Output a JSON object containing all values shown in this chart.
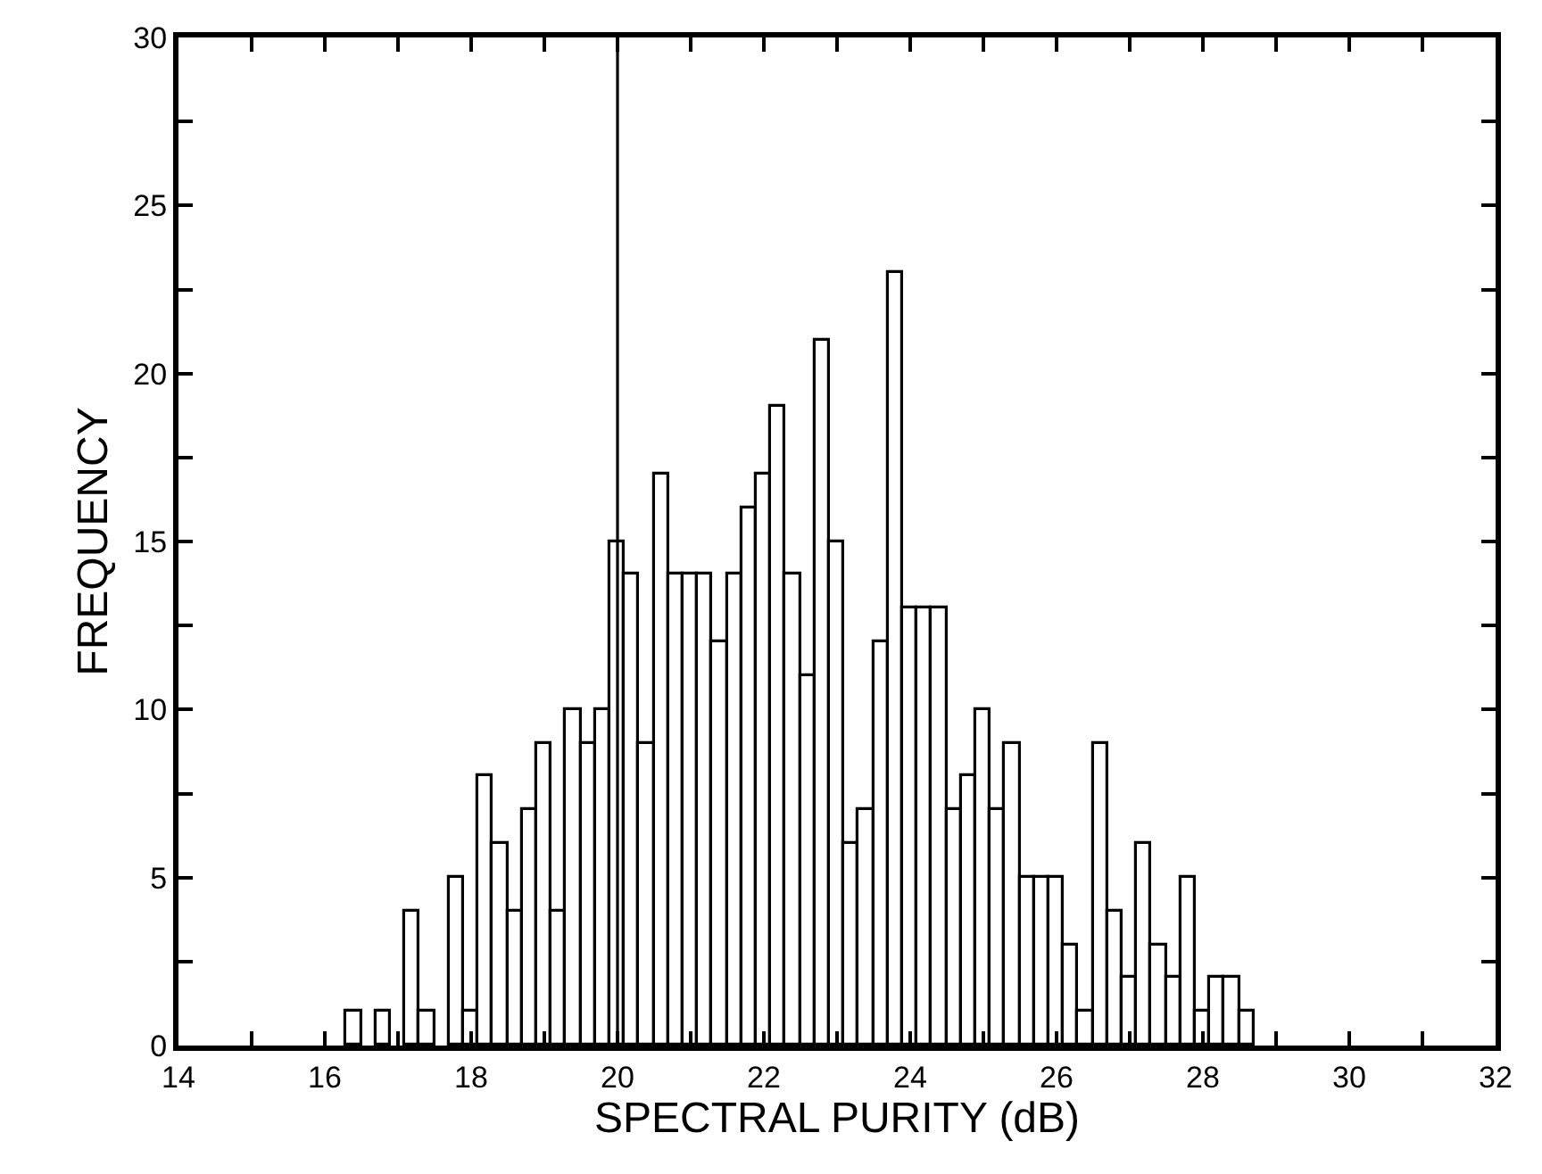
{
  "chart_data": {
    "type": "histogram",
    "xlabel": "SPECTRAL PURITY (dB)",
    "ylabel": "FREQUENCY",
    "bins": [
      16.3,
      16.5,
      16.7,
      16.9,
      17.1,
      17.3,
      17.5,
      17.7,
      17.9,
      18.1,
      18.3,
      18.5,
      18.7,
      18.9,
      19.1,
      19.3,
      19.5,
      19.7,
      19.9,
      20.1,
      20.3,
      20.5,
      20.7,
      20.9,
      21.1,
      21.3,
      21.5,
      21.7,
      21.9,
      22.1,
      22.3,
      22.5,
      22.7,
      22.9,
      23.1,
      23.3,
      23.5,
      23.7,
      23.9,
      24.1,
      24.3,
      24.5,
      24.7,
      24.9,
      25.1,
      25.3,
      25.5,
      25.7,
      25.9,
      26.1,
      26.3,
      26.5,
      26.7,
      26.9,
      27.1,
      27.3,
      27.5,
      27.7,
      27.9,
      28.1,
      28.3,
      28.5,
      28.7
    ],
    "values": [
      1,
      0,
      1,
      0,
      4,
      1,
      0,
      5,
      1,
      8,
      6,
      4,
      7,
      9,
      4,
      10,
      9,
      10,
      15,
      14,
      9,
      17,
      14,
      14,
      14,
      12,
      14,
      16,
      17,
      19,
      14,
      11,
      21,
      15,
      6,
      7,
      12,
      23,
      13,
      13,
      13,
      7,
      8,
      10,
      7,
      9,
      5,
      5,
      5,
      3,
      1,
      9,
      4,
      2,
      6,
      3,
      2,
      5,
      1,
      2,
      2,
      1
    ],
    "color": "#ffffff",
    "xlim": [
      14,
      32
    ],
    "xticks": [
      14,
      {
        "value": 15,
        "label": null
      },
      16,
      {
        "value": 17,
        "label": null
      },
      18,
      {
        "value": 19,
        "label": null
      },
      20,
      {
        "value": 21,
        "label": null
      },
      22,
      {
        "value": 23,
        "label": null
      },
      24,
      {
        "value": 25,
        "label": null
      },
      26,
      {
        "value": 27,
        "label": null
      },
      28,
      {
        "value": 29,
        "label": null
      },
      30,
      {
        "value": 31,
        "label": null
      },
      32
    ],
    "ylim": [
      0,
      30
    ],
    "yticks": [
      0,
      {
        "value": 2.5,
        "label": null
      },
      5,
      {
        "value": 7.5,
        "label": null
      },
      10,
      {
        "value": 12.5,
        "label": null
      },
      15,
      {
        "value": 17.5,
        "label": null
      },
      20,
      {
        "value": 22.5,
        "label": null
      },
      25,
      {
        "value": 27.5,
        "label": null
      },
      30
    ],
    "ref_lines": [
      {
        "axis": "x",
        "value": 20,
        "color": "#000000"
      }
    ]
  }
}
